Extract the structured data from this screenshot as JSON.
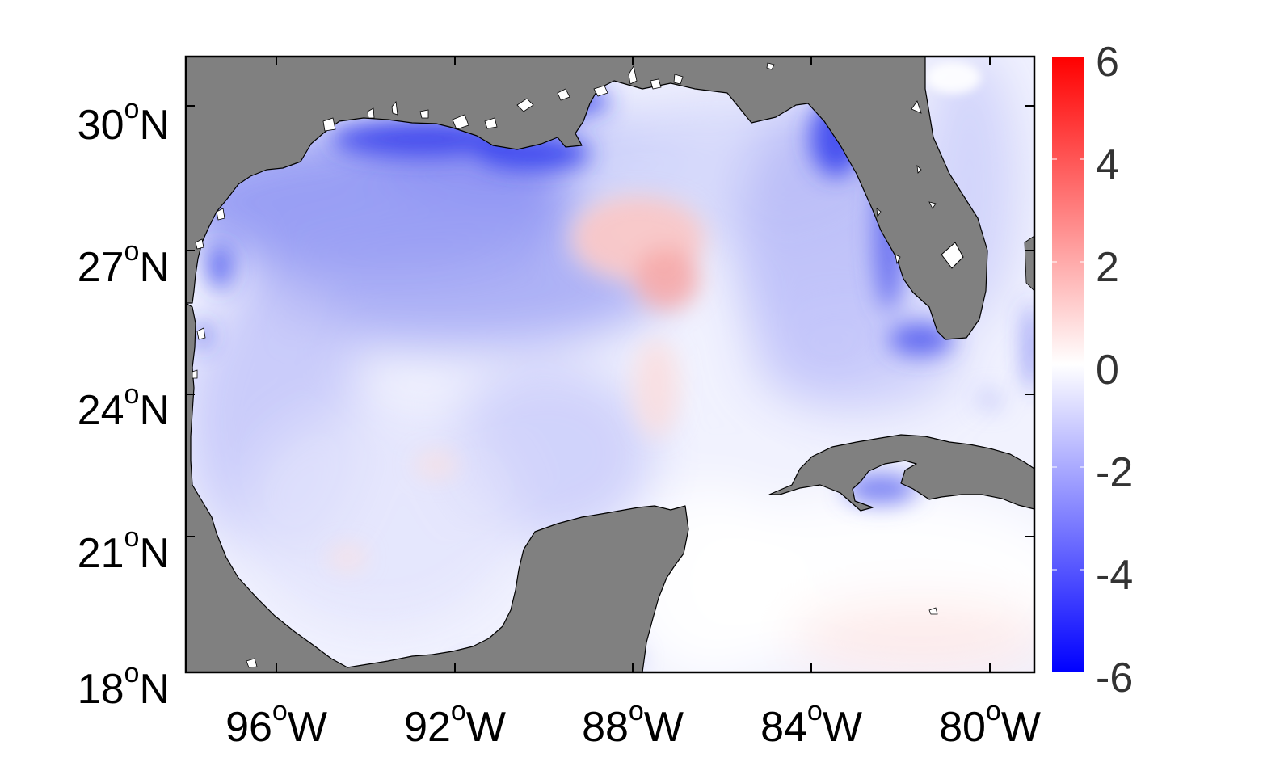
{
  "map": {
    "region": "Gulf of Mexico",
    "land_color": "#808080",
    "frame_color": "#000000",
    "lat_labels": [
      {
        "deg": "30",
        "sup": "o",
        "hem": "N"
      },
      {
        "deg": "27",
        "sup": "o",
        "hem": "N"
      },
      {
        "deg": "24",
        "sup": "o",
        "hem": "N"
      },
      {
        "deg": "21",
        "sup": "o",
        "hem": "N"
      },
      {
        "deg": "18",
        "sup": "o",
        "hem": "N"
      }
    ],
    "lon_labels": [
      {
        "deg": "96",
        "sup": "o",
        "hem": "W"
      },
      {
        "deg": "92",
        "sup": "o",
        "hem": "W"
      },
      {
        "deg": "88",
        "sup": "o",
        "hem": "W"
      },
      {
        "deg": "84",
        "sup": "o",
        "hem": "W"
      },
      {
        "deg": "80",
        "sup": "o",
        "hem": "W"
      }
    ]
  },
  "colorbar": {
    "min": -6,
    "max": 6,
    "colors": {
      "low": "#0000ff",
      "mid": "#ffffff",
      "high": "#ff0000"
    },
    "tick_labels": [
      "6",
      "4",
      "2",
      "0",
      "-2",
      "-4",
      "-6"
    ]
  }
}
